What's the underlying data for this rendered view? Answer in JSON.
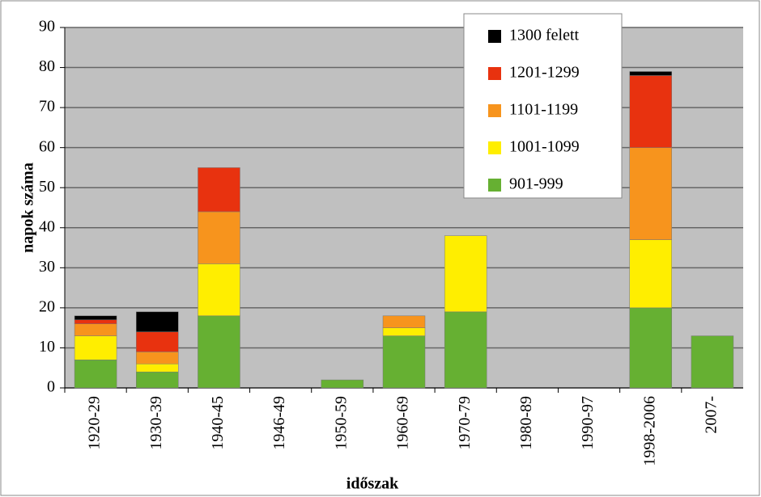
{
  "chart_data": {
    "type": "stacked_bar",
    "ylabel": "napok száma",
    "xlabel": "időszak",
    "categories": [
      "1920-29",
      "1930-39",
      "1940-45",
      "1946-49",
      "1950-59",
      "1960-69",
      "1970-79",
      "1980-89",
      "1990-97",
      "1998-2006",
      "2007-"
    ],
    "series": [
      {
        "name": "901-999",
        "color": "#66b032",
        "values": [
          7,
          4,
          18,
          0,
          2,
          13,
          19,
          0,
          0,
          20,
          13
        ]
      },
      {
        "name": "1001-1099",
        "color": "#ffee00",
        "values": [
          6,
          2,
          13,
          0,
          0,
          2,
          19,
          0,
          0,
          17,
          0
        ]
      },
      {
        "name": "1101-1199",
        "color": "#f7941d",
        "values": [
          3,
          3,
          13,
          0,
          0,
          3,
          0,
          0,
          0,
          23,
          0
        ]
      },
      {
        "name": "1201-1299",
        "color": "#e8320f",
        "values": [
          1,
          5,
          11,
          0,
          0,
          0,
          0,
          0,
          0,
          18,
          0
        ]
      },
      {
        "name": "1300 felett",
        "color": "#000000",
        "values": [
          1,
          5,
          0,
          0,
          0,
          0,
          0,
          0,
          0,
          1,
          0
        ]
      }
    ],
    "ylim": [
      0,
      90
    ],
    "yticks": [
      0,
      10,
      20,
      30,
      40,
      50,
      60,
      70,
      80,
      90
    ],
    "grid": true,
    "legend": "top-right"
  }
}
